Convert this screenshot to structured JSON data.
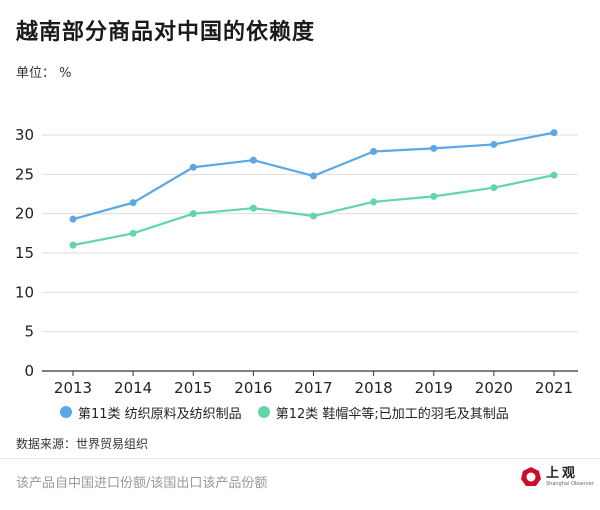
{
  "header": {
    "title": "越南部分商品对中国的依赖度",
    "unit": "单位： %"
  },
  "footer": {
    "source": "数据来源：世界贸易组织",
    "note": "该产品自中国进口份额/该国出口该产品份额",
    "logo_text": "上观",
    "logo_subtext": "Shanghai Observer"
  },
  "colors": {
    "series1": "#5aa8e6",
    "series2": "#63d6a8",
    "grid": "#dddddd",
    "axis": "#333333"
  },
  "chart_data": {
    "type": "line",
    "title": "越南部分商品对中国的依赖度",
    "xlabel": "",
    "ylabel": "单位： %",
    "x": [
      "2013",
      "2014",
      "2015",
      "2016",
      "2017",
      "2018",
      "2019",
      "2020",
      "2021"
    ],
    "ylim": [
      0,
      30
    ],
    "yticks": [
      0,
      5,
      10,
      15,
      20,
      25,
      30
    ],
    "grid": true,
    "legend_position": "bottom",
    "series": [
      {
        "name": "第11类 纺织原料及纺织制品",
        "color": "#5aa8e6",
        "values": [
          19.3,
          21.4,
          25.9,
          26.8,
          24.8,
          27.9,
          28.3,
          28.8,
          30.3
        ]
      },
      {
        "name": "第12类 鞋帽伞等;已加工的羽毛及其制品",
        "color": "#63d6a8",
        "values": [
          16.0,
          17.5,
          20.0,
          20.7,
          19.7,
          21.5,
          22.2,
          23.3,
          24.9
        ]
      }
    ]
  }
}
